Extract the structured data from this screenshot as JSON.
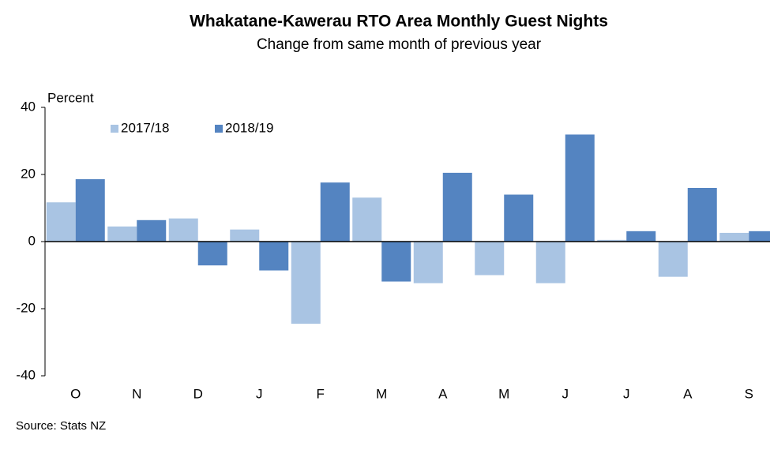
{
  "chart_data": {
    "type": "bar",
    "title": "Whakatane-Kawerau RTO Area Monthly Guest Nights",
    "subtitle": "Change from same month of previous  year",
    "y_label": "Percent",
    "source": "Source: Stats NZ",
    "categories": [
      "O",
      "N",
      "D",
      "J",
      "F",
      "M",
      "A",
      "M",
      "J",
      "J",
      "A",
      "S"
    ],
    "series": [
      {
        "name": "2017/18",
        "color": "#a9c4e3",
        "values": [
          11.7,
          4.5,
          6.9,
          3.6,
          -24.5,
          13.1,
          -12.4,
          -10,
          -12.4,
          0.5,
          -10.5,
          2.6
        ]
      },
      {
        "name": "2018/19",
        "color": "#5484c1",
        "values": [
          18.6,
          6.4,
          -7.1,
          -8.6,
          17.6,
          -11.9,
          20.5,
          14,
          31.9,
          3.1,
          16,
          3.1
        ]
      }
    ],
    "ylim": [
      -40,
      40
    ],
    "yticks": [
      -40,
      -20,
      0,
      20,
      40
    ],
    "grid": false,
    "legend": "top-left"
  }
}
